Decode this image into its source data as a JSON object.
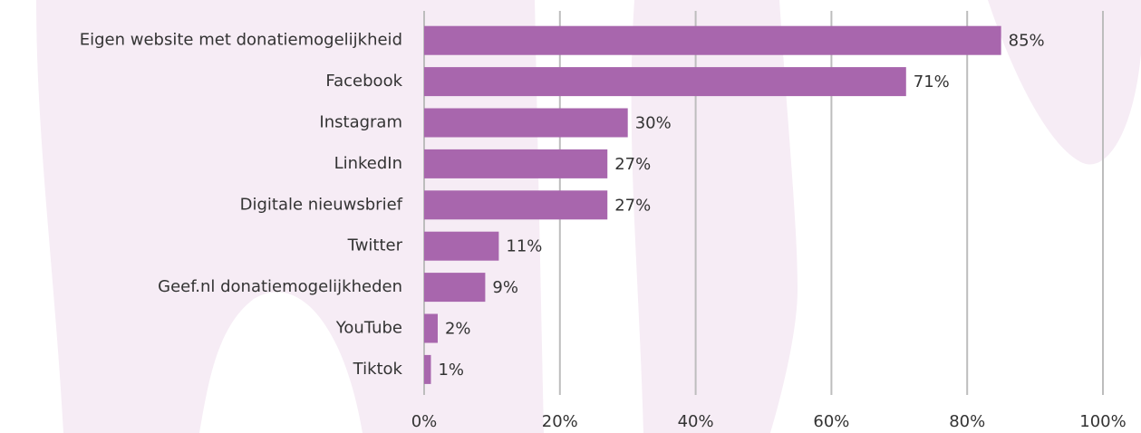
{
  "chart_data": {
    "type": "bar",
    "orientation": "horizontal",
    "categories": [
      "Eigen website met donatiemogelijkheid",
      "Facebook",
      "Instagram",
      "LinkedIn",
      "Digitale nieuwsbrief",
      "Twitter",
      "Geef.nl donatiemogelijkheden",
      "YouTube",
      "Tiktok"
    ],
    "values": [
      85,
      71,
      30,
      27,
      27,
      11,
      9,
      2,
      1
    ],
    "value_labels": [
      "85%",
      "71%",
      "30%",
      "27%",
      "27%",
      "11%",
      "9%",
      "2%",
      "1%"
    ],
    "color": "#a866ad",
    "xlim": [
      0,
      100
    ],
    "xticks": [
      {
        "value": 0,
        "label": "0%"
      },
      {
        "value": 20,
        "label": "20%"
      },
      {
        "value": 40,
        "label": "40%"
      },
      {
        "value": 60,
        "label": "60%"
      },
      {
        "value": 80,
        "label": "80%"
      },
      {
        "value": 100,
        "label": "100%"
      }
    ],
    "grid": true
  }
}
